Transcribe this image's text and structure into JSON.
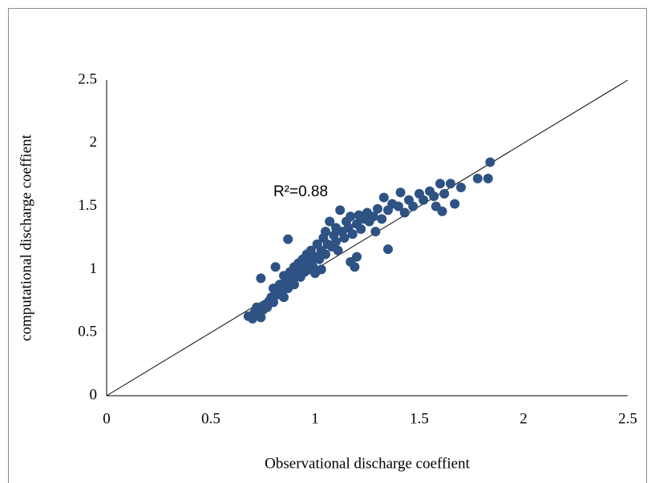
{
  "chart_data": {
    "type": "scatter",
    "x_label": "Observational discharge coeffient",
    "y_label": "computational discharge coeffient",
    "annotation": "R²=0.88",
    "color": "#2e5283",
    "xlim": [
      0,
      2.5
    ],
    "ylim": [
      0,
      2.5
    ],
    "xticks": [
      0,
      0.5,
      1,
      1.5,
      2,
      2.5
    ],
    "yticks": [
      0,
      0.5,
      1,
      1.5,
      2,
      2.5
    ],
    "reference_line": {
      "x": [
        0,
        2.5
      ],
      "y": [
        0,
        2.5
      ]
    },
    "x": [
      0.68,
      0.7,
      0.71,
      0.72,
      0.73,
      0.74,
      0.75,
      0.74,
      0.76,
      0.77,
      0.78,
      0.79,
      0.8,
      0.8,
      0.81,
      0.82,
      0.83,
      0.84,
      0.85,
      0.85,
      0.86,
      0.87,
      0.87,
      0.88,
      0.89,
      0.9,
      0.9,
      0.91,
      0.92,
      0.93,
      0.93,
      0.94,
      0.95,
      0.95,
      0.96,
      0.97,
      0.98,
      0.98,
      0.99,
      1.0,
      1.0,
      1.01,
      1.02,
      1.03,
      1.03,
      1.04,
      1.05,
      1.05,
      1.06,
      1.07,
      1.08,
      1.09,
      1.1,
      1.1,
      1.11,
      1.12,
      1.13,
      1.14,
      1.15,
      1.16,
      1.17,
      1.17,
      1.18,
      1.19,
      1.2,
      1.2,
      1.21,
      1.22,
      1.23,
      1.25,
      1.26,
      1.28,
      1.29,
      1.3,
      1.32,
      1.33,
      1.35,
      1.35,
      1.37,
      1.4,
      1.41,
      1.43,
      1.45,
      1.47,
      1.5,
      1.52,
      1.55,
      1.57,
      1.58,
      1.6,
      1.61,
      1.62,
      1.65,
      1.67,
      1.7,
      1.78,
      1.83,
      1.84
    ],
    "values": [
      0.63,
      0.61,
      0.66,
      0.7,
      0.64,
      0.62,
      0.68,
      0.93,
      0.72,
      0.7,
      0.75,
      0.78,
      0.74,
      0.85,
      1.02,
      0.8,
      0.88,
      0.82,
      0.95,
      0.78,
      0.9,
      1.24,
      0.85,
      0.98,
      0.92,
      1.02,
      0.88,
      0.96,
      1.05,
      0.94,
      1.0,
      1.08,
      0.98,
      1.03,
      1.12,
      1.0,
      1.06,
      1.15,
      1.02,
      1.1,
      0.97,
      1.2,
      1.08,
      1.15,
      1.0,
      1.25,
      1.12,
      1.3,
      1.2,
      1.38,
      1.18,
      1.27,
      1.22,
      1.33,
      1.15,
      1.47,
      1.3,
      1.25,
      1.38,
      1.33,
      1.06,
      1.42,
      1.28,
      1.02,
      1.1,
      1.36,
      1.43,
      1.32,
      1.4,
      1.45,
      1.38,
      1.42,
      1.3,
      1.48,
      1.4,
      1.57,
      1.16,
      1.47,
      1.52,
      1.5,
      1.61,
      1.45,
      1.55,
      1.5,
      1.6,
      1.55,
      1.62,
      1.58,
      1.5,
      1.68,
      1.46,
      1.6,
      1.68,
      1.52,
      1.65,
      1.72,
      1.72,
      1.85
    ]
  }
}
